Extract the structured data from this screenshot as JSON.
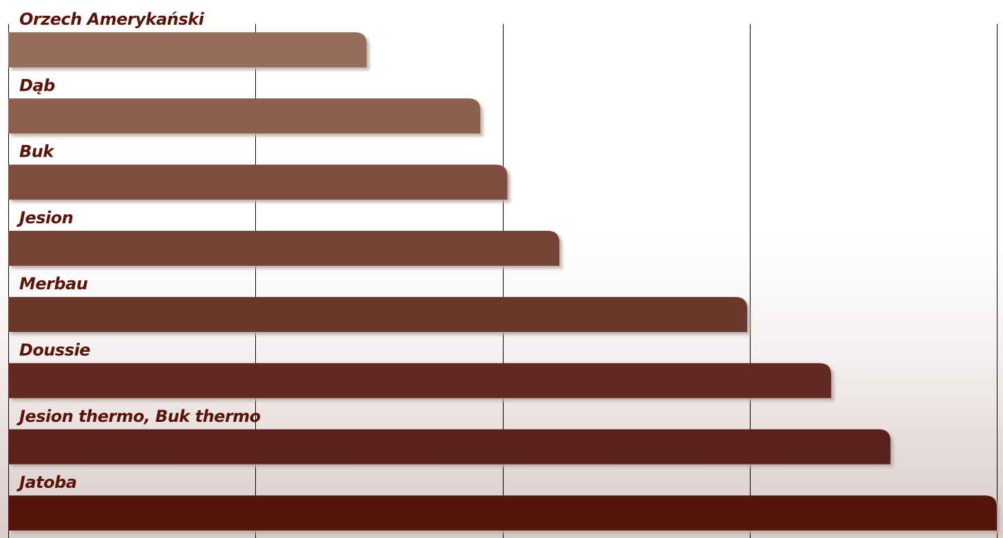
{
  "chart_data": {
    "type": "bar",
    "orientation": "horizontal",
    "categories": [
      "Orzech Amerykański",
      "Dąb",
      "Buk",
      "Jesion",
      "Merbau",
      "Doussie",
      "Jesion thermo, Buk thermo",
      "Jatoba"
    ],
    "values": [
      1.45,
      1.91,
      2.02,
      2.23,
      2.99,
      3.33,
      3.57,
      4.0
    ],
    "xlim": [
      0,
      4
    ],
    "grid": true,
    "legend": "none",
    "title": "",
    "xlabel": "",
    "ylabel": ""
  },
  "colors": {
    "bars": [
      "#936e5c",
      "#8a5e4c",
      "#7f4f3e",
      "#744334",
      "#6b372b",
      "#622a23",
      "#5a231e",
      "#521509"
    ],
    "label_text": "#5a1306",
    "gridline": "#000000",
    "bar_shadow": "#b9aca6"
  }
}
